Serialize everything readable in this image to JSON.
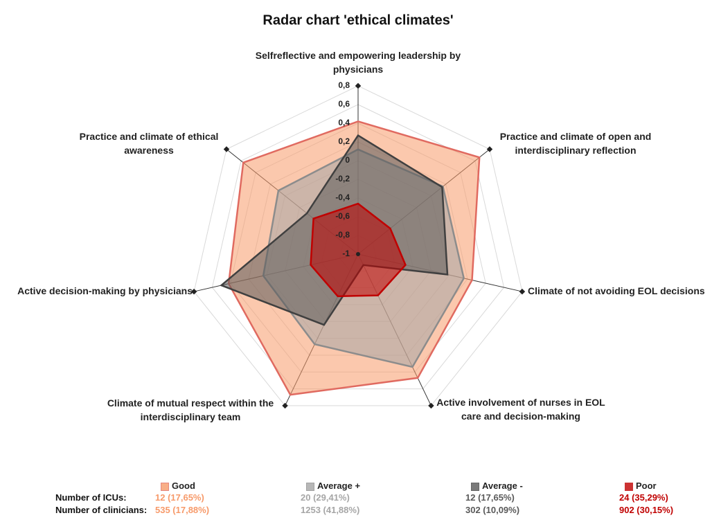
{
  "chart_data": {
    "type": "radar",
    "title": "Radar chart 'ethical climates'",
    "categories": [
      "Selfreflective and empowering leadership by physicians",
      "Practice and climate of open and interdisciplinary reflection",
      "Climate of not avoiding EOL decisions",
      "Active involvement of nurses in EOL care and decision-making",
      "Climate of mutual respect within the interdisciplinary team",
      "Active decision-making by physicians",
      "Practice and climate of ethical awareness"
    ],
    "series": [
      {
        "name": "Good",
        "color": "#f79a6a",
        "line_color": "#e06a60",
        "values": [
          0.42,
          0.66,
          0.25,
          0.47,
          0.67,
          0.42,
          0.57
        ]
      },
      {
        "name": "Average +",
        "color": "#a6a6a6",
        "line_color": "#8c8c8c",
        "values": [
          0.12,
          0.16,
          0.16,
          0.34,
          0.07,
          0.04,
          0.09
        ]
      },
      {
        "name": "Average -",
        "color": "#595959",
        "line_color": "#404040",
        "values": [
          0.27,
          0.15,
          -0.02,
          -0.87,
          -0.16,
          0.5,
          -0.3
        ]
      },
      {
        "name": "Poor",
        "color": "#c00000",
        "line_color": "#c00000",
        "values": [
          -0.46,
          -0.56,
          -0.48,
          -0.51,
          -0.5,
          -0.48,
          -0.39
        ]
      }
    ],
    "ylim": [
      -1,
      0.8
    ],
    "yticks": [
      -1,
      {
        "value": -0.8,
        "label": "-0,8"
      },
      {
        "value": -0.6,
        "label": "-0,6"
      },
      {
        "value": -0.4,
        "label": "-0,4"
      },
      {
        "value": -0.2,
        "label": "-0,2"
      },
      0,
      {
        "value": 0.2,
        "label": "0,2"
      },
      {
        "value": 0.4,
        "label": "0,4"
      },
      {
        "value": 0.6,
        "label": "0,6"
      },
      {
        "value": 0.8,
        "label": "0,8"
      }
    ],
    "grid": true
  },
  "table": {
    "row_labels": [
      "Number of ICUs:",
      "Number of clinicians:"
    ],
    "rows": [
      [
        "12 (17,65%)",
        "20 (29,41%)",
        "12 (17,65%)",
        "24 (35,29%)"
      ],
      [
        "535 (17,88%)",
        "1253 (41,88%)",
        "302 (10,09%)",
        "902 (30,15%)"
      ]
    ]
  }
}
